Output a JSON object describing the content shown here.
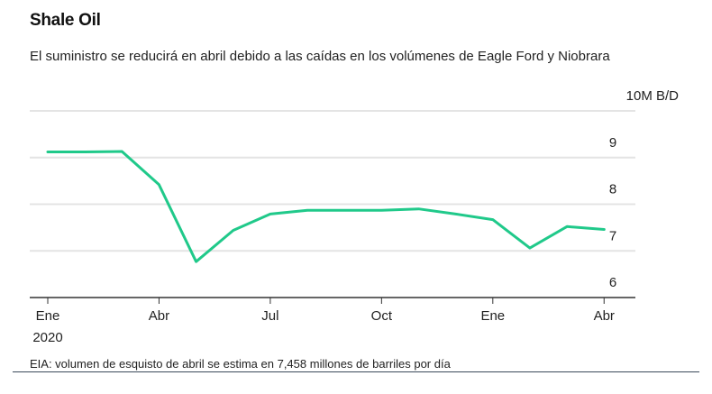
{
  "chart_data": {
    "type": "line",
    "title": "Shale Oil",
    "subtitle": "El suministro se reducirá en abril debido a las caídas en los volúmenes de Eagle Ford y Niobrara",
    "unit_label": "10M B/D",
    "ylim": [
      6,
      10
    ],
    "yticks": [
      6,
      7,
      8,
      9,
      10
    ],
    "ytick_labels": [
      "6",
      "7",
      "8",
      "9",
      "10M B/D"
    ],
    "grid": true,
    "xtick_labels": [
      {
        "month_index": 0,
        "label": "Ene",
        "sublabel": "2020"
      },
      {
        "month_index": 3,
        "label": "Abr"
      },
      {
        "month_index": 6,
        "label": "Jul"
      },
      {
        "month_index": 9,
        "label": "Oct"
      },
      {
        "month_index": 12,
        "label": "Ene"
      },
      {
        "month_index": 15,
        "label": "Abr"
      }
    ],
    "x": [
      "2020-01",
      "2020-02",
      "2020-03",
      "2020-04",
      "2020-05",
      "2020-06",
      "2020-07",
      "2020-08",
      "2020-09",
      "2020-10",
      "2020-11",
      "2020-12",
      "2021-01",
      "2021-02",
      "2021-03",
      "2021-04"
    ],
    "values": [
      9.12,
      9.12,
      9.13,
      8.42,
      6.77,
      7.44,
      7.79,
      7.87,
      7.87,
      7.87,
      7.9,
      7.79,
      7.67,
      7.06,
      7.52,
      7.458
    ],
    "line_color": "#20c98a",
    "source": "EIA: volumen de esquisto de abril se estima en 7,458 millones de barriles por día"
  }
}
